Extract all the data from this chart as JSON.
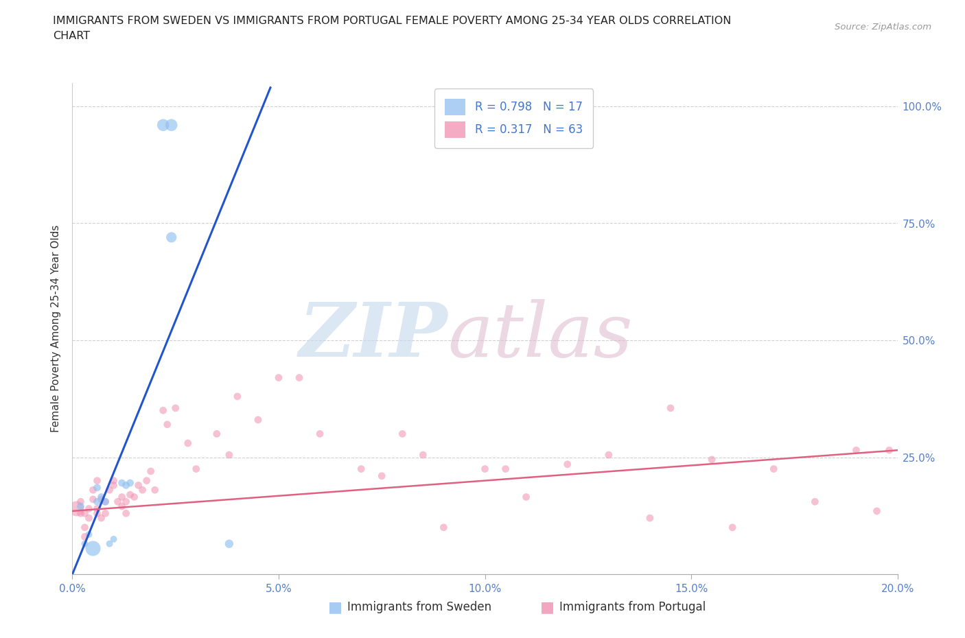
{
  "title_line1": "IMMIGRANTS FROM SWEDEN VS IMMIGRANTS FROM PORTUGAL FEMALE POVERTY AMONG 25-34 YEAR OLDS CORRELATION",
  "title_line2": "CHART",
  "source": "Source: ZipAtlas.com",
  "ylabel": "Female Poverty Among 25-34 Year Olds",
  "sweden_R": 0.798,
  "sweden_N": 17,
  "portugal_R": 0.317,
  "portugal_N": 63,
  "xlim": [
    0.0,
    0.2
  ],
  "ylim": [
    0.0,
    1.05
  ],
  "xticks": [
    0.0,
    0.05,
    0.1,
    0.15,
    0.2
  ],
  "yticks": [
    0.0,
    0.25,
    0.5,
    0.75,
    1.0
  ],
  "ytick_labels_right": [
    "",
    "25.0%",
    "50.0%",
    "75.0%",
    "100.0%"
  ],
  "xtick_labels": [
    "0.0%",
    "5.0%",
    "10.0%",
    "15.0%",
    "20.0%"
  ],
  "sweden_color": "#90c0f0",
  "portugal_color": "#f090b0",
  "sweden_trendline_color": "#2255cc",
  "portugal_trendline_color": "#e06080",
  "background_color": "#ffffff",
  "grid_color": "#d0d0d0",
  "legend_sweden_label": "Immigrants from Sweden",
  "legend_portugal_label": "Immigrants from Portugal",
  "title_fontsize": 11.5,
  "axis_label_fontsize": 11,
  "tick_fontsize": 11,
  "legend_fontsize": 12,
  "sweden_x": [
    0.002,
    0.003,
    0.004,
    0.005,
    0.006,
    0.006,
    0.007,
    0.008,
    0.009,
    0.01,
    0.012,
    0.013,
    0.014,
    0.022,
    0.024,
    0.024,
    0.038
  ],
  "sweden_y": [
    0.145,
    0.065,
    0.085,
    0.055,
    0.155,
    0.185,
    0.165,
    0.155,
    0.065,
    0.075,
    0.195,
    0.19,
    0.195,
    0.96,
    0.96,
    0.72,
    0.065
  ],
  "sweden_sizes": [
    60,
    50,
    50,
    250,
    60,
    60,
    60,
    60,
    50,
    50,
    60,
    60,
    60,
    160,
    160,
    120,
    80
  ],
  "portugal_x": [
    0.001,
    0.002,
    0.002,
    0.003,
    0.003,
    0.003,
    0.004,
    0.004,
    0.005,
    0.005,
    0.006,
    0.006,
    0.006,
    0.007,
    0.007,
    0.008,
    0.008,
    0.009,
    0.01,
    0.01,
    0.011,
    0.012,
    0.012,
    0.013,
    0.013,
    0.014,
    0.015,
    0.016,
    0.017,
    0.018,
    0.019,
    0.02,
    0.022,
    0.023,
    0.025,
    0.028,
    0.03,
    0.035,
    0.038,
    0.04,
    0.045,
    0.05,
    0.055,
    0.06,
    0.07,
    0.075,
    0.08,
    0.085,
    0.09,
    0.1,
    0.105,
    0.11,
    0.12,
    0.13,
    0.14,
    0.145,
    0.155,
    0.16,
    0.17,
    0.18,
    0.19,
    0.195,
    0.198
  ],
  "portugal_y": [
    0.14,
    0.13,
    0.155,
    0.13,
    0.1,
    0.08,
    0.12,
    0.14,
    0.16,
    0.18,
    0.13,
    0.14,
    0.2,
    0.16,
    0.12,
    0.155,
    0.13,
    0.18,
    0.2,
    0.19,
    0.155,
    0.165,
    0.145,
    0.13,
    0.155,
    0.17,
    0.165,
    0.19,
    0.18,
    0.2,
    0.22,
    0.18,
    0.35,
    0.32,
    0.355,
    0.28,
    0.225,
    0.3,
    0.255,
    0.38,
    0.33,
    0.42,
    0.42,
    0.3,
    0.225,
    0.21,
    0.3,
    0.255,
    0.1,
    0.225,
    0.225,
    0.165,
    0.235,
    0.255,
    0.12,
    0.355,
    0.245,
    0.1,
    0.225,
    0.155,
    0.265,
    0.135,
    0.265
  ],
  "portugal_sizes": [
    250,
    60,
    60,
    60,
    60,
    60,
    60,
    60,
    60,
    60,
    60,
    60,
    60,
    60,
    60,
    60,
    60,
    60,
    60,
    60,
    60,
    60,
    60,
    60,
    60,
    60,
    60,
    60,
    60,
    60,
    60,
    60,
    60,
    60,
    60,
    60,
    60,
    60,
    60,
    60,
    60,
    60,
    60,
    60,
    60,
    60,
    60,
    60,
    60,
    60,
    60,
    60,
    60,
    60,
    60,
    60,
    60,
    60,
    60,
    60,
    60,
    60,
    60
  ],
  "sweden_trend_x": [
    0.0,
    0.048
  ],
  "sweden_trend_y": [
    0.0,
    1.04
  ],
  "portugal_trend_x": [
    0.0,
    0.2
  ],
  "portugal_trend_y": [
    0.135,
    0.265
  ]
}
